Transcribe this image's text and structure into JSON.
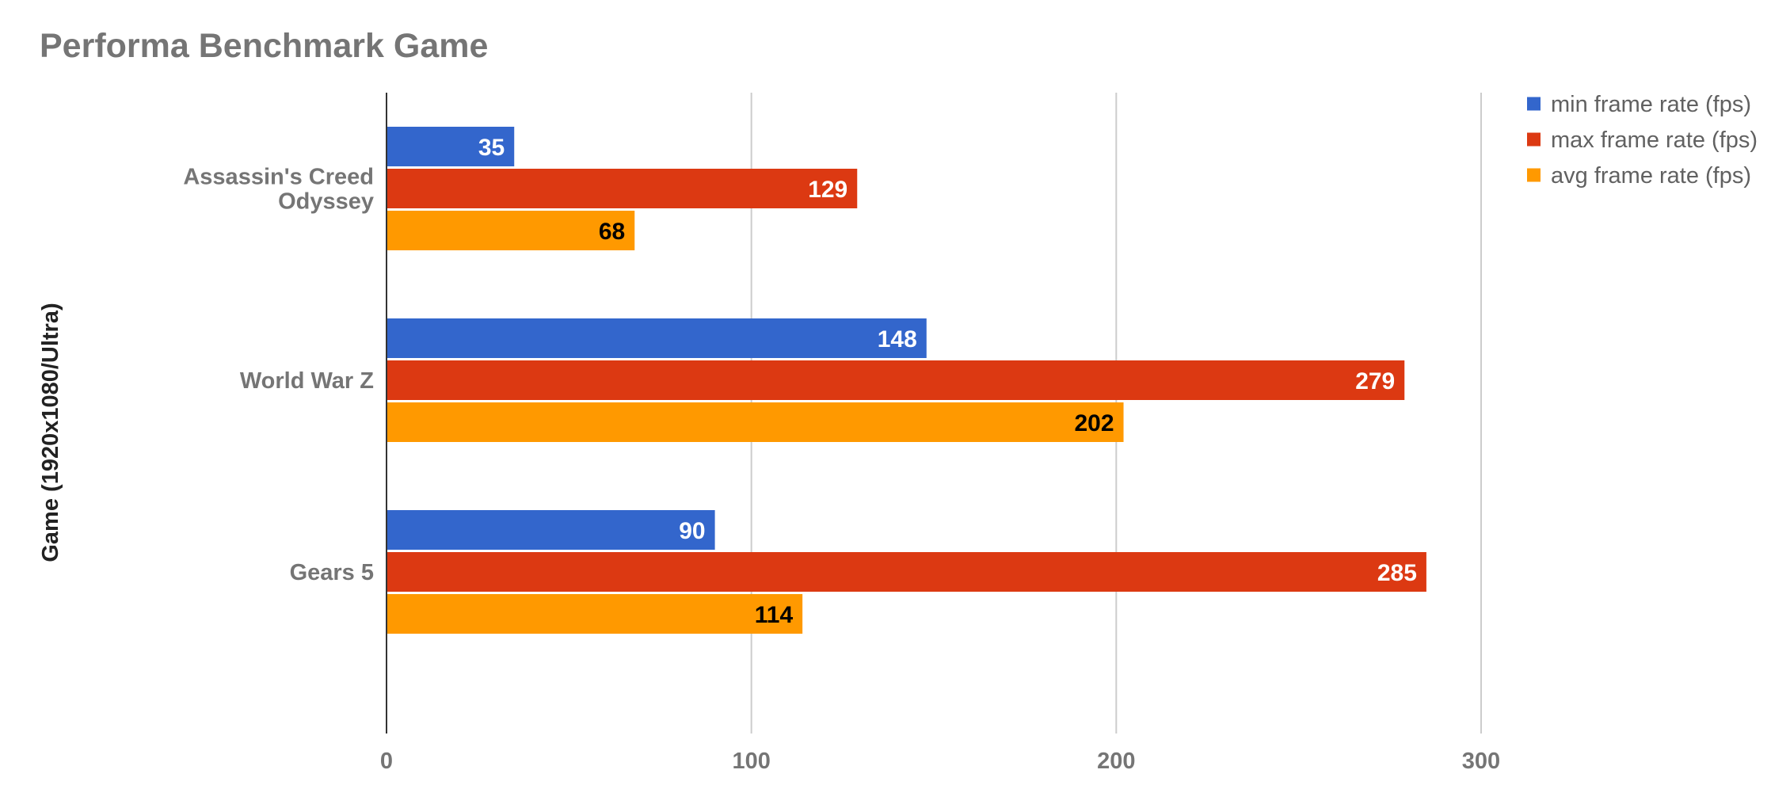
{
  "chart_data": {
    "type": "bar",
    "orientation": "horizontal",
    "title": "Performa Benchmark Game",
    "xlabel": "",
    "ylabel": "Game (1920x1080/Ultra)",
    "categories": [
      [
        "Assassin's Creed",
        "Odyssey"
      ],
      [
        "World War Z"
      ],
      [
        "Gears 5"
      ]
    ],
    "series": [
      {
        "name": "min frame rate (fps)",
        "color": "#3366cc",
        "label_color": "#ffffff",
        "values": [
          35,
          148,
          90
        ]
      },
      {
        "name": "max frame rate (fps)",
        "color": "#dc3912",
        "label_color": "#ffffff",
        "values": [
          129,
          279,
          285
        ]
      },
      {
        "name": "avg frame rate (fps)",
        "color": "#ff9900",
        "label_color": "#000000",
        "values": [
          68,
          202,
          114
        ]
      }
    ],
    "xlim": [
      0,
      300
    ],
    "xticks": [
      0,
      100,
      200,
      300
    ],
    "grid": true,
    "legend_position": "top-right",
    "gridline_color": "#cccccc",
    "axis_color": "#333333"
  }
}
